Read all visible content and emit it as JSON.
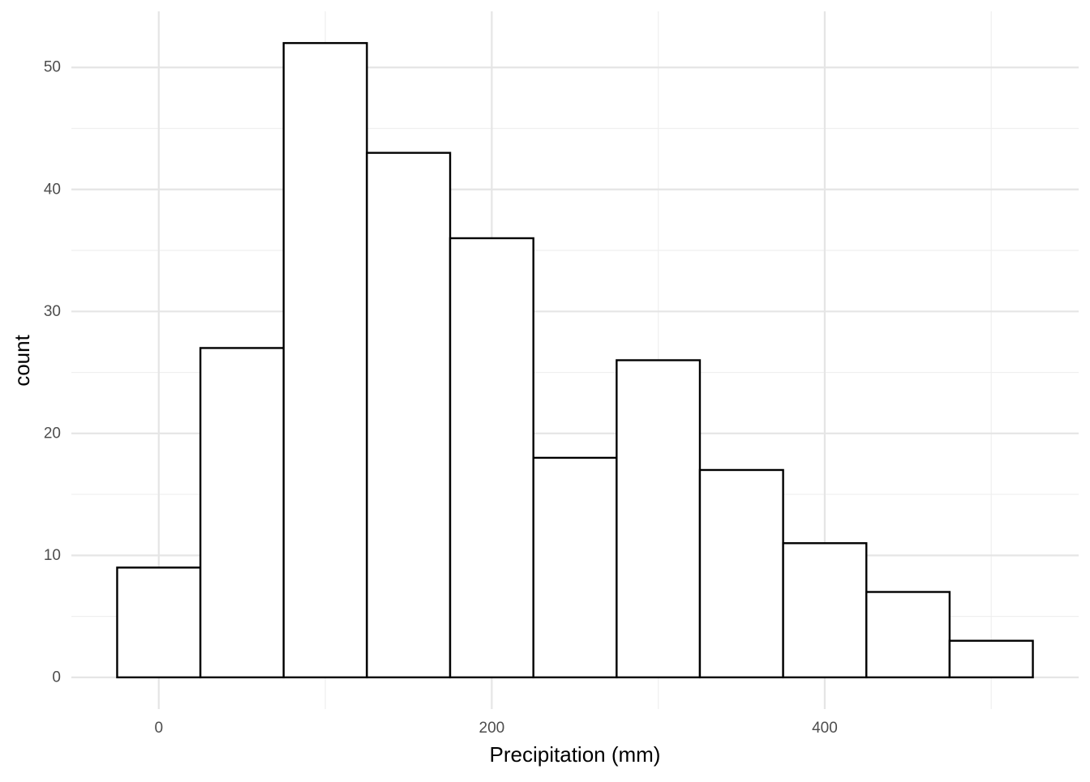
{
  "chart_data": {
    "type": "bar",
    "subtype": "histogram",
    "title": "",
    "xlabel": "Precipitation (mm)",
    "ylabel": "count",
    "bin_width": 50,
    "bins": [
      {
        "start": -25,
        "end": 25,
        "count": 9
      },
      {
        "start": 25,
        "end": 75,
        "count": 27
      },
      {
        "start": 75,
        "end": 125,
        "count": 52
      },
      {
        "start": 125,
        "end": 175,
        "count": 43
      },
      {
        "start": 175,
        "end": 225,
        "count": 36
      },
      {
        "start": 225,
        "end": 275,
        "count": 18
      },
      {
        "start": 275,
        "end": 325,
        "count": 26
      },
      {
        "start": 325,
        "end": 375,
        "count": 17
      },
      {
        "start": 375,
        "end": 425,
        "count": 11
      },
      {
        "start": 425,
        "end": 475,
        "count": 7
      },
      {
        "start": 475,
        "end": 525,
        "count": 3
      }
    ],
    "xlim": [
      -52.5,
      552.5
    ],
    "ylim": [
      -2.6,
      54.6
    ],
    "x_ticks": [
      0,
      200,
      400
    ],
    "x_tick_labels": [
      "0",
      "200",
      "400"
    ],
    "x_minor_ticks": [
      100,
      300,
      500
    ],
    "y_ticks": [
      0,
      10,
      20,
      30,
      40,
      50
    ],
    "y_tick_labels": [
      "0",
      "10",
      "20",
      "30",
      "40",
      "50"
    ],
    "y_minor_ticks": [
      5,
      15,
      25,
      35,
      45
    ],
    "grid": true,
    "legend": "none",
    "colors": {
      "bar_fill": "#ffffff",
      "bar_outline": "#000000",
      "grid_major": "#e5e5e5",
      "grid_minor": "#efefef",
      "tick_text": "#4d4d4d",
      "background": "#ffffff"
    }
  }
}
